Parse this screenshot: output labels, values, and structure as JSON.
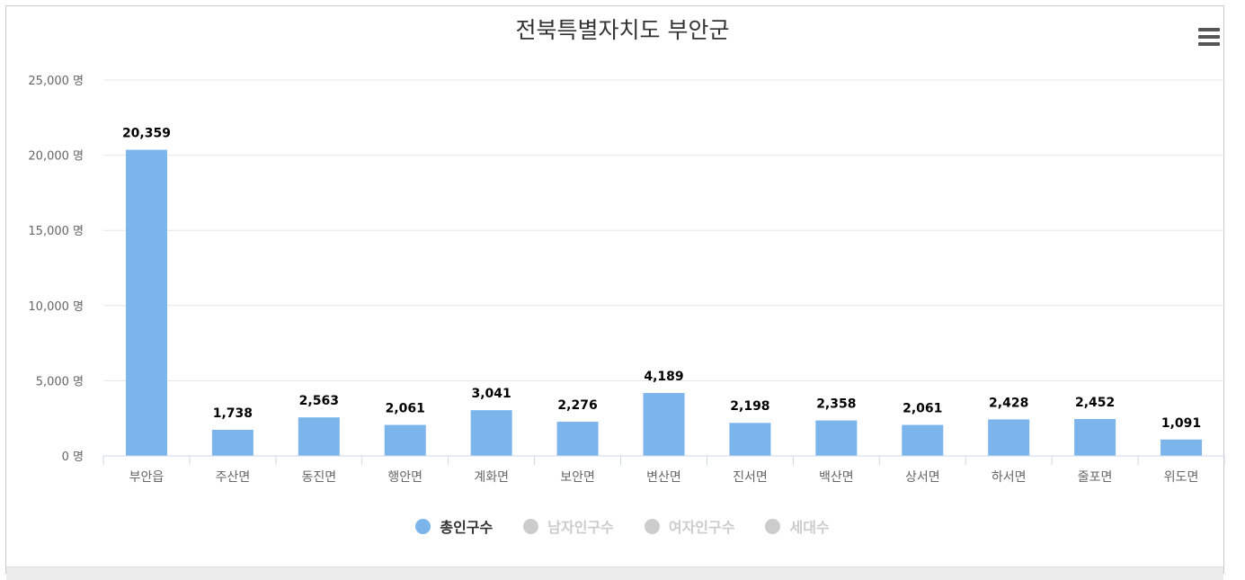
{
  "colors": {
    "bar": "#7cb5ec",
    "grid": "#e6e6e6",
    "axis": "#ccd6eb",
    "label": "#666666",
    "data_label": "#000000",
    "legend_active": "#333333",
    "legend_inactive": "#cccccc"
  },
  "menu": {
    "icon": "hamburger-menu-icon"
  },
  "chart_data": {
    "type": "bar",
    "title": "전북특별자치도 부안군",
    "categories": [
      "부안읍",
      "주산면",
      "동진면",
      "행안면",
      "계화면",
      "보안면",
      "변산면",
      "진서면",
      "백산면",
      "상서면",
      "하서면",
      "줄포면",
      "위도면"
    ],
    "series": [
      {
        "name": "총인구수",
        "visible": true,
        "values": [
          20359,
          1738,
          2563,
          2061,
          3041,
          2276,
          4189,
          2198,
          2358,
          2061,
          2428,
          2452,
          1091
        ]
      }
    ],
    "data_labels": [
      "20,359",
      "1,738",
      "2,563",
      "2,061",
      "3,041",
      "2,276",
      "4,189",
      "2,198",
      "2,358",
      "2,061",
      "2,428",
      "2,452",
      "1,091"
    ],
    "ylim": [
      0,
      25000
    ],
    "yticks": [
      0,
      5000,
      10000,
      15000,
      20000,
      25000
    ],
    "ytick_labels": [
      "0 명",
      "5,000 명",
      "10,000 명",
      "15,000 명",
      "20,000 명",
      "25,000 명"
    ],
    "grid": true,
    "legend": {
      "position": "bottom-center",
      "items": [
        {
          "label": "총인구수",
          "active": true
        },
        {
          "label": "남자인구수",
          "active": false
        },
        {
          "label": "여자인구수",
          "active": false
        },
        {
          "label": "세대수",
          "active": false
        }
      ]
    }
  }
}
